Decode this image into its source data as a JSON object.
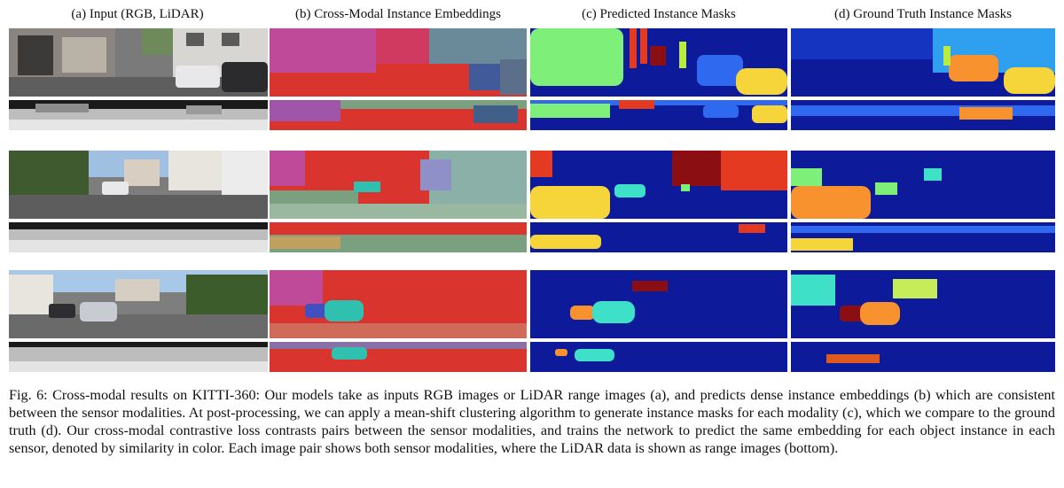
{
  "columns": [
    "(a) Input (RGB, LiDAR)",
    "(b) Cross-Modal Instance Embeddings",
    "(c) Predicted Instance Masks",
    "(d) Ground Truth Instance Masks"
  ],
  "caption": "Fig. 6: Cross-modal results on KITTI-360: Our models take as inputs RGB images or LiDAR range images (a), and predicts dense instance embeddings (b) which are consistent between the sensor modalities. At post-processing, we can apply a mean-shift clustering algorithm to generate instance masks for each modality (c), which we compare to the ground truth (d). Our cross-modal contrastive loss contrasts pairs between the sensor modalities, and trains the network to predict the same embedding for each object instance in each sensor, denoted by similarity in color. Each image pair shows both sensor modalities, where the LiDAR data is shown as range images (bottom).",
  "colors": {
    "mask_bg": "#0d1a9a",
    "embed_bg": "#d9352e",
    "instance_green": "#7ef07a",
    "instance_yellow": "#f6d53a",
    "instance_orange": "#f7922f",
    "instance_cyan": "#3fe0c8",
    "instance_blue": "#2f69f0",
    "instance_darkred": "#8b0f12",
    "instance_red": "#e53a22"
  }
}
